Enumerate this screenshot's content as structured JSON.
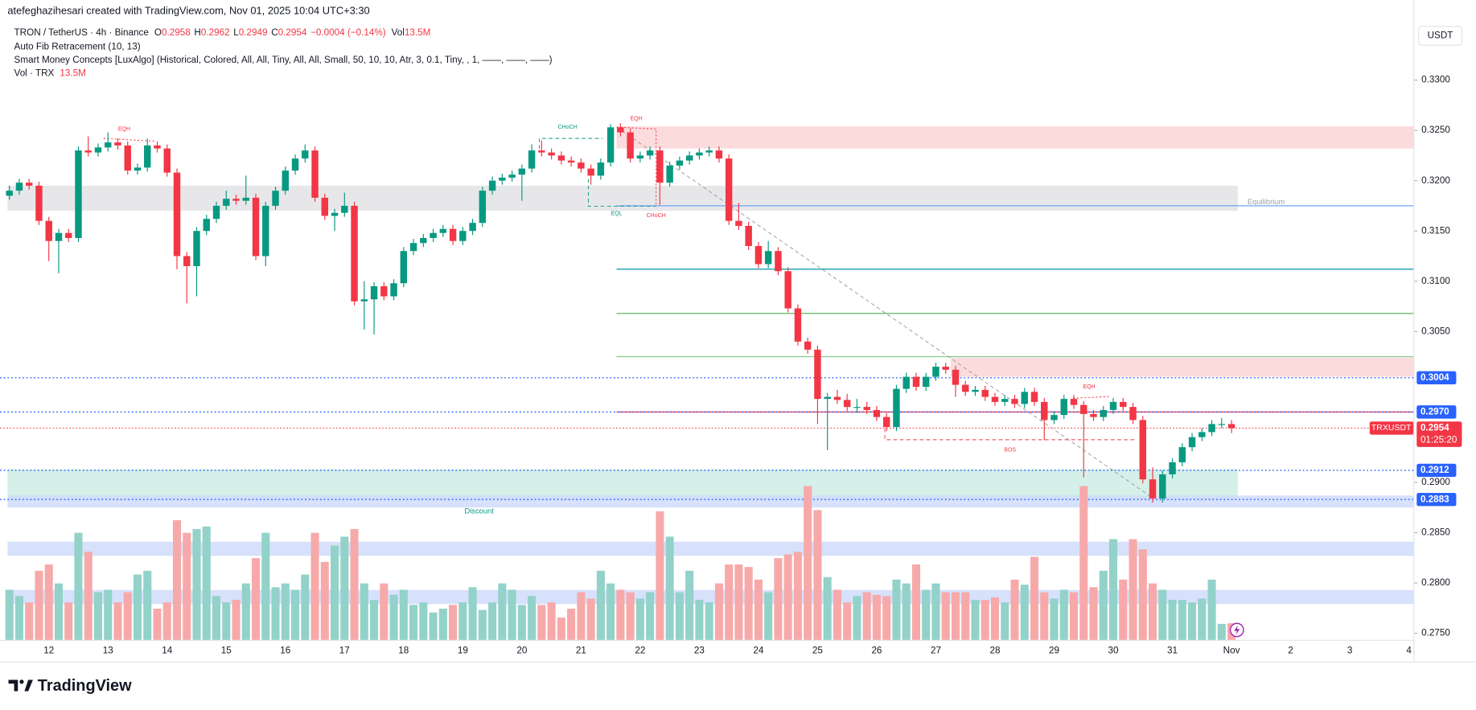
{
  "chart_data": {
    "type": "candlestick",
    "caption": "atefeghazihesari created with TradingView.com, Nov 01, 2025 10:04 UTC+3:30",
    "symbol": "TRON / TetherUS · 4h · Binance",
    "ohlc_letters": [
      "O",
      "H",
      "L",
      "C"
    ],
    "change": "−0.0004 (−0.14%)",
    "volume_label": "Vol",
    "last_volume": "13.5M",
    "indicators": [
      "Auto Fib Retracement (10, 13)",
      "Smart Money Concepts [LuxAlgo] (Historical, Colored, All, All, Tiny, All, All, Small, 50, 10, 10, Atr, 3, 0.1, Tiny, , 1, ——, ——, ——)"
    ],
    "volume_indicator": "Vol · TRX",
    "currency": "USDT",
    "ticker": "TRXUSDT",
    "countdown": "01:25:20",
    "brand": "TradingView",
    "x_labels": [
      "12",
      "13",
      "14",
      "15",
      "16",
      "17",
      "18",
      "19",
      "20",
      "21",
      "22",
      "23",
      "24",
      "25",
      "26",
      "27",
      "28",
      "29",
      "30",
      "31",
      "Nov",
      "2",
      "3",
      "4"
    ],
    "open": [
      0.3185,
      0.319,
      0.3198,
      0.3195,
      0.316,
      0.314,
      0.3148,
      0.3143,
      0.323,
      0.3228,
      0.3233,
      0.3238,
      0.3235,
      0.321,
      0.3213,
      0.3235,
      0.3232,
      0.3208,
      0.3125,
      0.3115,
      0.315,
      0.3162,
      0.3175,
      0.3182,
      0.318,
      0.3183,
      0.3125,
      0.3175,
      0.319,
      0.321,
      0.3222,
      0.323,
      0.3183,
      0.3165,
      0.3168,
      0.3175,
      0.308,
      0.3082,
      0.3095,
      0.3085,
      0.3098,
      0.313,
      0.3138,
      0.3143,
      0.3148,
      0.3152,
      0.314,
      0.315,
      0.3158,
      0.319,
      0.32,
      0.3203,
      0.3206,
      0.3212,
      0.323,
      0.3228,
      0.3225,
      0.322,
      0.3218,
      0.3212,
      0.3205,
      0.3218,
      0.3253,
      0.3248,
      0.3222,
      0.3225,
      0.323,
      0.3198,
      0.3215,
      0.322,
      0.3225,
      0.3228,
      0.323,
      0.3222,
      0.316,
      0.3155,
      0.3135,
      0.3117,
      0.313,
      0.311,
      0.3073,
      0.304,
      0.3032,
      0.2983,
      0.2985,
      0.2982,
      0.2975,
      0.2975,
      0.2972,
      0.2965,
      0.2955,
      0.2993,
      0.3005,
      0.2995,
      0.3005,
      0.3015,
      0.3012,
      0.2997,
      0.299,
      0.2992,
      0.2985,
      0.298,
      0.2983,
      0.2978,
      0.299,
      0.298,
      0.2962,
      0.2967,
      0.2983,
      0.2977,
      0.2968,
      0.2965,
      0.2972,
      0.298,
      0.2975,
      0.2962,
      0.2903,
      0.2884,
      0.2908,
      0.292,
      0.2935,
      0.2945,
      0.295,
      0.2958,
      0.2958
    ],
    "high": [
      0.3195,
      0.3202,
      0.3202,
      0.3199,
      0.3164,
      0.3152,
      0.3152,
      0.3234,
      0.3244,
      0.3237,
      0.3248,
      0.3242,
      0.3239,
      0.3217,
      0.3242,
      0.3239,
      0.3236,
      0.3212,
      0.3129,
      0.3154,
      0.3166,
      0.3179,
      0.319,
      0.3186,
      0.3205,
      0.3187,
      0.3179,
      0.3194,
      0.3214,
      0.3226,
      0.3236,
      0.3234,
      0.3187,
      0.3172,
      0.3188,
      0.3179,
      0.31,
      0.3099,
      0.3099,
      0.3102,
      0.3134,
      0.3142,
      0.3147,
      0.3152,
      0.3156,
      0.3156,
      0.3154,
      0.3162,
      0.3194,
      0.3204,
      0.3207,
      0.321,
      0.3216,
      0.3236,
      0.324,
      0.3232,
      0.3229,
      0.3224,
      0.3222,
      0.3216,
      0.3222,
      0.3256,
      0.3257,
      0.3252,
      0.3229,
      0.3234,
      0.3234,
      0.3219,
      0.3224,
      0.3229,
      0.3232,
      0.3234,
      0.3234,
      0.3226,
      0.3178,
      0.3159,
      0.3139,
      0.314,
      0.3134,
      0.3114,
      0.3077,
      0.3044,
      0.3036,
      0.2989,
      0.2992,
      0.2988,
      0.2983,
      0.298,
      0.2976,
      0.2969,
      0.2997,
      0.3009,
      0.3009,
      0.3009,
      0.3019,
      0.3019,
      0.3016,
      0.3001,
      0.2996,
      0.2996,
      0.2989,
      0.2987,
      0.2987,
      0.2994,
      0.2994,
      0.2984,
      0.2971,
      0.2987,
      0.2987,
      0.2981,
      0.2972,
      0.2976,
      0.2984,
      0.2984,
      0.2979,
      0.2966,
      0.2915,
      0.2912,
      0.2924,
      0.2939,
      0.2949,
      0.2954,
      0.2962,
      0.2964,
      0.2962
    ],
    "low": [
      0.3181,
      0.3186,
      0.3191,
      0.3156,
      0.312,
      0.3108,
      0.3139,
      0.3139,
      0.3224,
      0.3224,
      0.3229,
      0.3231,
      0.3206,
      0.3206,
      0.3209,
      0.3228,
      0.3204,
      0.3112,
      0.3078,
      0.3085,
      0.3146,
      0.3158,
      0.3171,
      0.3176,
      0.3176,
      0.3121,
      0.3115,
      0.3171,
      0.3186,
      0.3206,
      0.3218,
      0.3179,
      0.3161,
      0.315,
      0.3164,
      0.3076,
      0.3052,
      0.3047,
      0.3081,
      0.3081,
      0.3094,
      0.3126,
      0.3134,
      0.3139,
      0.3144,
      0.3136,
      0.3136,
      0.3146,
      0.3154,
      0.3186,
      0.3196,
      0.3199,
      0.318,
      0.3208,
      0.3224,
      0.3221,
      0.3216,
      0.3214,
      0.3208,
      0.3196,
      0.3201,
      0.3214,
      0.3244,
      0.3218,
      0.3218,
      0.3221,
      0.3176,
      0.3194,
      0.3211,
      0.3216,
      0.3221,
      0.3224,
      0.3218,
      0.3156,
      0.3151,
      0.3131,
      0.3113,
      0.3113,
      0.3106,
      0.3069,
      0.3036,
      0.3028,
      0.2958,
      0.2932,
      0.2978,
      0.2971,
      0.2969,
      0.2968,
      0.2961,
      0.2951,
      0.2951,
      0.2989,
      0.2991,
      0.2991,
      0.3001,
      0.3008,
      0.2985,
      0.2986,
      0.2986,
      0.2981,
      0.2976,
      0.2976,
      0.2974,
      0.2974,
      0.2976,
      0.2942,
      0.2958,
      0.2963,
      0.2973,
      0.2905,
      0.2961,
      0.2961,
      0.2968,
      0.2971,
      0.2958,
      0.2899,
      0.288,
      0.288,
      0.2904,
      0.2916,
      0.2931,
      0.2941,
      0.2946,
      0.2954,
      0.2949
    ],
    "close": [
      0.319,
      0.3198,
      0.3195,
      0.316,
      0.314,
      0.3148,
      0.3143,
      0.323,
      0.3228,
      0.3233,
      0.3238,
      0.3235,
      0.321,
      0.3213,
      0.3235,
      0.3232,
      0.3208,
      0.3125,
      0.3115,
      0.315,
      0.3162,
      0.3175,
      0.3182,
      0.318,
      0.3183,
      0.3125,
      0.3175,
      0.319,
      0.321,
      0.3222,
      0.323,
      0.3183,
      0.3165,
      0.3168,
      0.3175,
      0.308,
      0.3082,
      0.3095,
      0.3085,
      0.3098,
      0.313,
      0.3138,
      0.3143,
      0.3148,
      0.3152,
      0.314,
      0.315,
      0.3158,
      0.319,
      0.32,
      0.3203,
      0.3206,
      0.3212,
      0.323,
      0.3228,
      0.3225,
      0.322,
      0.3218,
      0.3212,
      0.3205,
      0.3218,
      0.3253,
      0.3248,
      0.3222,
      0.3225,
      0.323,
      0.3198,
      0.3215,
      0.322,
      0.3225,
      0.3228,
      0.323,
      0.3222,
      0.316,
      0.3155,
      0.3135,
      0.3117,
      0.313,
      0.311,
      0.3073,
      0.304,
      0.3032,
      0.2983,
      0.2985,
      0.2982,
      0.2975,
      0.2975,
      0.2972,
      0.2965,
      0.2955,
      0.2993,
      0.3005,
      0.2995,
      0.3005,
      0.3015,
      0.3012,
      0.2997,
      0.299,
      0.2992,
      0.2985,
      0.298,
      0.2983,
      0.2978,
      0.299,
      0.298,
      0.2962,
      0.2967,
      0.2983,
      0.2977,
      0.2968,
      0.2965,
      0.2972,
      0.298,
      0.2975,
      0.2962,
      0.2903,
      0.2884,
      0.2908,
      0.292,
      0.2935,
      0.2945,
      0.295,
      0.2958,
      0.2958,
      0.2954
    ],
    "volume": [
      40,
      35,
      30,
      55,
      60,
      45,
      30,
      85,
      70,
      38,
      40,
      30,
      38,
      52,
      55,
      25,
      30,
      95,
      85,
      88,
      90,
      35,
      30,
      32,
      45,
      65,
      85,
      42,
      45,
      40,
      52,
      85,
      62,
      75,
      82,
      88,
      45,
      32,
      45,
      36,
      40,
      28,
      30,
      22,
      25,
      28,
      30,
      42,
      24,
      30,
      45,
      40,
      28,
      35,
      28,
      30,
      18,
      25,
      38,
      33,
      55,
      45,
      40,
      38,
      33,
      38,
      102,
      82,
      38,
      55,
      32,
      30,
      45,
      60,
      60,
      58,
      48,
      38,
      65,
      68,
      70,
      122,
      103,
      50,
      40,
      30,
      35,
      38,
      36,
      35,
      48,
      45,
      60,
      40,
      45,
      38,
      38,
      38,
      32,
      32,
      34,
      30,
      48,
      44,
      66,
      38,
      33,
      40,
      38,
      122,
      42,
      55,
      80,
      48,
      80,
      72,
      45,
      40,
      32,
      32,
      30,
      33,
      48,
      13,
      13.5
    ],
    "colors": {
      "up": "#089981",
      "down": "#f23645",
      "up_volume": "#92d2c9",
      "down_volume": "#f7a9aa"
    },
    "ylim": [
      0.2743,
      0.3359
    ],
    "yticks": [
      {
        "value": 0.33,
        "label": "0.3300"
      },
      {
        "value": 0.325,
        "label": "0.3250"
      },
      {
        "value": 0.32,
        "label": "0.3200"
      },
      {
        "value": 0.315,
        "label": "0.3150"
      },
      {
        "value": 0.31,
        "label": "0.3100"
      },
      {
        "value": 0.305,
        "label": "0.3050"
      },
      {
        "value": 0.29,
        "label": "0.2900"
      },
      {
        "value": 0.285,
        "label": "0.2850"
      },
      {
        "value": 0.28,
        "label": "0.2800"
      },
      {
        "value": 0.275,
        "label": "0.2750"
      }
    ],
    "volume_ylim": [
      0,
      490
    ],
    "levels": [
      {
        "value": 0.3004,
        "label": "0.3004"
      },
      {
        "value": 0.297,
        "label": "0.2970"
      },
      {
        "value": 0.2912,
        "label": "0.2912"
      },
      {
        "value": 0.2883,
        "label": "0.2883"
      }
    ],
    "fib_lines": [
      {
        "value": 0.3175,
        "color": "#5b9cf6"
      },
      {
        "value": 0.3112,
        "color": "#0097a7"
      },
      {
        "value": 0.3068,
        "color": "#4caf50"
      },
      {
        "value": 0.3025,
        "color": "#81c784"
      },
      {
        "value": 0.297,
        "color": "#f23645"
      }
    ],
    "zones": [
      {
        "top": 0.3195,
        "bottom": 0.317,
        "color": "#e3e3e6",
        "label": "Equilibrium"
      },
      {
        "top": 0.3254,
        "bottom": 0.3232,
        "color": "#fbd5d7"
      },
      {
        "top": 0.3024,
        "bottom": 0.3005,
        "color": "#fbd5d7"
      },
      {
        "top": 0.2913,
        "bottom": 0.2882,
        "color": "#cdede5"
      },
      {
        "top": 0.2887,
        "bottom": 0.2875,
        "color": "#d0dcfb",
        "label": "Discount"
      },
      {
        "top": 0.2841,
        "bottom": 0.2827,
        "color": "#d0dcfb"
      },
      {
        "top": 0.2793,
        "bottom": 0.2779,
        "color": "#d0dcfb"
      }
    ],
    "annotations": [
      {
        "text": "EQH",
        "color": "#f23645"
      },
      {
        "text": "CHoCH",
        "color": "#089981"
      },
      {
        "text": "EQH",
        "color": "#f23645"
      },
      {
        "text": "EQL",
        "color": "#089981"
      },
      {
        "text": "CHoCH",
        "color": "#f23645"
      },
      {
        "text": "EQH",
        "color": "#f23645"
      },
      {
        "text": "BOS",
        "color": "#f23645"
      }
    ]
  }
}
